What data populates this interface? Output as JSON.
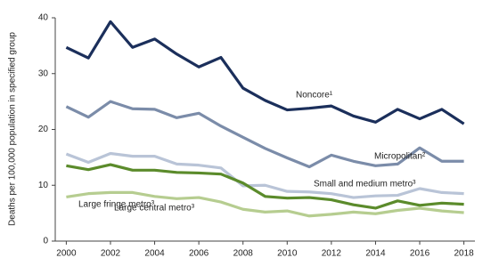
{
  "chart_data": {
    "type": "line",
    "y_label": "Deaths per 100,000 population in specified group",
    "x": [
      2000,
      2001,
      2002,
      2003,
      2004,
      2005,
      2006,
      2007,
      2008,
      2009,
      2010,
      2011,
      2012,
      2013,
      2014,
      2015,
      2016,
      2017,
      2018
    ],
    "xlim": [
      1999.5,
      2018.5
    ],
    "xticks": [
      2000,
      2002,
      2004,
      2006,
      2008,
      2010,
      2012,
      2014,
      2016,
      2018
    ],
    "ylim": [
      0,
      40
    ],
    "yticks": [
      0,
      10,
      20,
      30,
      40
    ],
    "grid": false,
    "series": [
      {
        "name": "Noncore¹",
        "color": "#1b2f5b",
        "values": [
          34.7,
          32.8,
          39.3,
          34.7,
          36.2,
          33.5,
          31.2,
          32.9,
          27.4,
          25.2,
          23.5,
          23.8,
          24.2,
          22.4,
          21.3,
          23.6,
          21.9,
          23.6,
          21.0
        ]
      },
      {
        "name": "Micropolitan²",
        "color": "#7b8ca9",
        "values": [
          24.1,
          22.2,
          25.0,
          23.7,
          23.6,
          22.1,
          22.9,
          20.6,
          18.6,
          16.6,
          14.9,
          13.3,
          15.4,
          14.3,
          13.5,
          13.8,
          16.7,
          14.3,
          14.3
        ]
      },
      {
        "name": "Small and medium metro³",
        "color": "#b9c4d7",
        "values": [
          15.6,
          14.1,
          15.7,
          15.2,
          15.2,
          13.8,
          13.6,
          13.1,
          9.9,
          10.0,
          8.9,
          8.8,
          8.5,
          7.8,
          8.1,
          8.2,
          9.4,
          8.7,
          8.5
        ]
      },
      {
        "name": "Large fringe metro³",
        "color": "#5b8b2b",
        "values": [
          13.5,
          12.8,
          13.7,
          12.7,
          12.7,
          12.3,
          12.2,
          12.0,
          10.4,
          8.0,
          7.7,
          7.8,
          7.4,
          6.5,
          5.9,
          7.2,
          6.4,
          6.8,
          6.6
        ]
      },
      {
        "name": "Large central metro³",
        "color": "#b6cd90",
        "values": [
          7.9,
          8.5,
          8.7,
          8.7,
          8.0,
          7.6,
          7.8,
          7.0,
          5.7,
          5.2,
          5.4,
          4.5,
          4.8,
          5.2,
          4.9,
          5.5,
          5.9,
          5.4,
          5.1
        ]
      }
    ]
  }
}
